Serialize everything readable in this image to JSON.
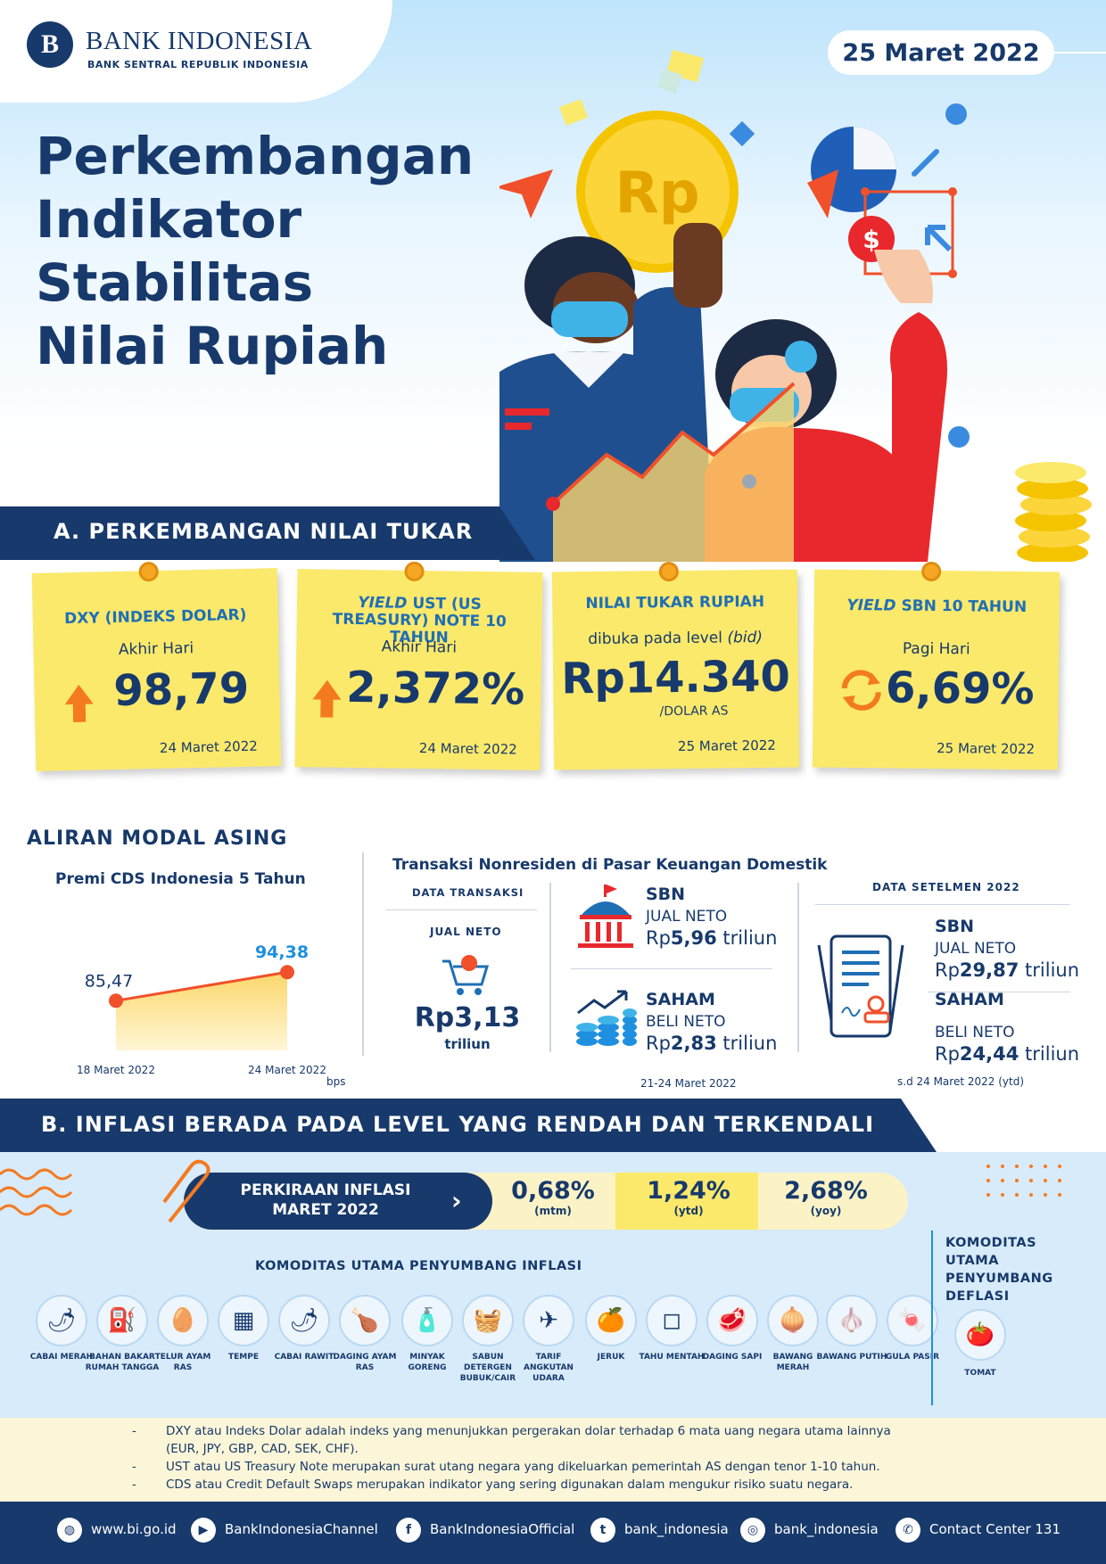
{
  "header": {
    "bank_name": "BANK INDONESIA",
    "bank_sub": "BANK SENTRAL REPUBLIK INDONESIA",
    "date": "25 Maret 2022",
    "title_lines": [
      "Perkembangan",
      "Indikator",
      "Stabilitas",
      "Nilai Rupiah"
    ],
    "coin_label": "Rp",
    "dollar_label": "$"
  },
  "section_a": {
    "title": "A. PERKEMBANGAN NILAI TUKAR",
    "cards": [
      {
        "title": "DXY (INDEKS DOLAR)",
        "sub": "Akhir Hari",
        "value": "98,79",
        "date": "24 Maret 2022",
        "indicator": "up-arrow"
      },
      {
        "title_italic": "YIELD",
        "title_rest": " UST (US TREASURY) NOTE  10 TAHUN",
        "sub": "Akhir Hari",
        "value": "2,372%",
        "date": "24 Maret 2022",
        "indicator": "up-arrow"
      },
      {
        "title": "NILAI TUKAR RUPIAH",
        "sub": "dibuka pada level",
        "sub_italic": "(bid)",
        "value": "Rp14.340",
        "unit": "/DOLAR AS",
        "date": "25 Maret 2022"
      },
      {
        "title_italic": "YIELD",
        "title_rest": " SBN 10 TAHUN",
        "sub": "Pagi Hari",
        "value": "6,69%",
        "date": "25 Maret 2022",
        "indicator": "refresh-arrows"
      }
    ]
  },
  "aliran": {
    "title": "ALIRAN MODAL ASING",
    "cds_title": "Premi CDS Indonesia 5 Tahun",
    "cds_unit": "bps",
    "nonres_title": "Transaksi Nonresiden di Pasar Keuangan Domestik",
    "data_transaksi": "DATA TRANSAKSI",
    "jual_neto": "JUAL NETO",
    "total_value": "Rp3,13",
    "total_unit": "triliun",
    "sbn_label": "SBN",
    "sbn_action": "JUAL NETO",
    "sbn_value_prefix": "Rp",
    "sbn_value": "5,96",
    "sbn_unit": " triliun",
    "saham_label": "SAHAM",
    "saham_action": "BELI NETO",
    "saham_value_prefix": "Rp",
    "saham_value": "2,83",
    "saham_unit": " triliun",
    "period": "21-24 Maret  2022",
    "setelmen_title": "DATA SETELMEN 2022",
    "set_sbn_label": "SBN",
    "set_sbn_action": "JUAL NETO",
    "set_sbn_prefix": "Rp",
    "set_sbn_value": "29,87",
    "set_sbn_unit": " triliun",
    "set_saham_label": "SAHAM",
    "set_saham_action": "BELI NETO",
    "set_saham_prefix": "Rp",
    "set_saham_value": "24,44",
    "set_saham_unit": " triliun",
    "set_period": "s.d 24 Maret 2022 (ytd)"
  },
  "chart_data": {
    "type": "area",
    "title": "Premi CDS Indonesia 5 Tahun",
    "ylabel": "bps",
    "categories": [
      "18 Maret 2022",
      "24 Maret 2022"
    ],
    "values": [
      85.47,
      94.38
    ],
    "data_labels": [
      "85,47",
      "94,38"
    ],
    "ylim": [
      70,
      100
    ],
    "colors": {
      "line": "#f0502a",
      "fill_top": "#fcd76b",
      "fill_bottom": "#fff6d6",
      "highlight": "#1f8fe0"
    }
  },
  "section_b": {
    "title": "B. INFLASI BERADA PADA LEVEL YANG RENDAH DAN TERKENDALI",
    "pill_label_1": "PERKIRAAN INFLASI",
    "pill_label_2": "MARET 2022",
    "metrics": [
      {
        "value": "0,68%",
        "unit": "(mtm)"
      },
      {
        "value": "1,24%",
        "unit": "(ytd)"
      },
      {
        "value": "2,68%",
        "unit": "(yoy)"
      }
    ],
    "kom_title": "KOMODITAS UTAMA PENYUMBANG INFLASI",
    "commodities": [
      {
        "label": "CABAI MERAH",
        "icon": "🌶"
      },
      {
        "label": "BAHAN BAKAR RUMAH TANGGA",
        "icon": "⛽"
      },
      {
        "label": "TELUR AYAM RAS",
        "icon": "🥚"
      },
      {
        "label": "TEMPE",
        "icon": "▦"
      },
      {
        "label": "CABAI RAWIT",
        "icon": "🌶"
      },
      {
        "label": "DAGING AYAM RAS",
        "icon": "🍗"
      },
      {
        "label": "MINYAK GORENG",
        "icon": "🧴"
      },
      {
        "label": "SABUN DETERGEN BUBUK/CAIR",
        "icon": "🧺"
      },
      {
        "label": "TARIF ANGKUTAN UDARA",
        "icon": "✈"
      },
      {
        "label": "JERUK",
        "icon": "🍊"
      },
      {
        "label": "TAHU MENTAH",
        "icon": "◻"
      },
      {
        "label": "DAGING SAPI",
        "icon": "🥩"
      },
      {
        "label": "BAWANG MERAH",
        "icon": "🧅"
      },
      {
        "label": "BAWANG PUTIH",
        "icon": "🧄"
      },
      {
        "label": "GULA PASIR",
        "icon": "🍬"
      }
    ],
    "deflasi_title_lines": [
      "KOMODITAS",
      "UTAMA",
      "PENYUMBANG",
      "DEFLASI"
    ],
    "deflasi_item": {
      "label": "TOMAT",
      "icon": "🍅"
    }
  },
  "notes": [
    "DXY atau Indeks Dolar adalah indeks yang menunjukkan pergerakan dolar terhadap 6 mata uang negara utama lainnya",
    "(EUR, JPY, GBP, CAD, SEK, CHF).",
    "UST atau US Treasury Note merupakan surat utang negara yang dikeluarkan pemerintah AS dengan tenor 1-10 tahun.",
    "CDS atau Credit Default Swaps merupakan indikator yang sering digunakan dalam mengukur risiko suatu negara."
  ],
  "footer": [
    {
      "icon": "globe-icon",
      "text": "www.bi.go.id"
    },
    {
      "icon": "youtube-icon",
      "text": "BankIndonesiaChannel"
    },
    {
      "icon": "facebook-icon",
      "text": "BankIndonesiaOfficial"
    },
    {
      "icon": "twitter-icon",
      "text": "bank_indonesia"
    },
    {
      "icon": "instagram-icon",
      "text": "bank_indonesia"
    },
    {
      "icon": "phone-icon",
      "text": "Contact Center 131"
    }
  ]
}
